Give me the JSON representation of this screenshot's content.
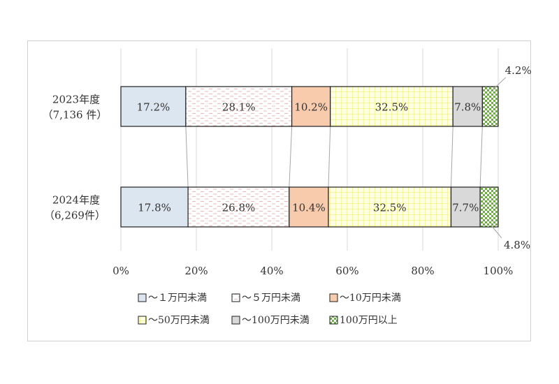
{
  "chart_data": {
    "type": "bar",
    "orientation": "horizontal",
    "stacked": "percent",
    "categories": [
      {
        "year_label": "2023年度",
        "count_label": "（7,136 件）"
      },
      {
        "year_label": "2024年度",
        "count_label": "（6,269件）"
      }
    ],
    "series": [
      {
        "name": "～１万円未満",
        "values": [
          17.2,
          17.8
        ],
        "labels": [
          "17.2%",
          "17.8%"
        ],
        "color": "#dce6f1",
        "pattern": "none"
      },
      {
        "name": "～５万円未満",
        "values": [
          28.1,
          26.8
        ],
        "labels": [
          "28.1%",
          "26.8%"
        ],
        "color": "#ffffff",
        "pattern": "dash-pink"
      },
      {
        "name": "～10万円未満",
        "values": [
          10.2,
          10.4
        ],
        "labels": [
          "10.2%",
          "10.4%"
        ],
        "color": "#f8cbad",
        "pattern": "none"
      },
      {
        "name": "～50万円未満",
        "values": [
          32.5,
          32.5
        ],
        "labels": [
          "32.5%",
          "32.5%"
        ],
        "color": "#ffffe0",
        "pattern": "grid-yellow"
      },
      {
        "name": "～100万円未満",
        "values": [
          7.8,
          7.7
        ],
        "labels": [
          "7.8%",
          "7.7%"
        ],
        "color": "#d9d9d9",
        "pattern": "none"
      },
      {
        "name": "100万円以上",
        "values": [
          4.2,
          4.8
        ],
        "labels": [
          "4.2%",
          "4.8%"
        ],
        "color": "#92d050",
        "pattern": "checker-green"
      }
    ],
    "xaxis": {
      "ticks": [
        "0%",
        "20%",
        "40%",
        "60%",
        "80%",
        "100%"
      ],
      "range": [
        0,
        100
      ]
    },
    "grid": "vertical",
    "legend": "bottom",
    "series_lines": true
  }
}
